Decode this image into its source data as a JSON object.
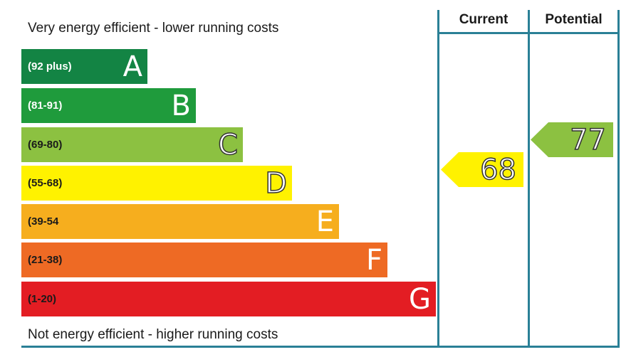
{
  "top_caption": "Very energy efficient - lower running costs",
  "bottom_caption": "Not energy efficient - higher running costs",
  "columns": {
    "current": "Current",
    "potential": "Potential"
  },
  "chart_data": {
    "type": "bar",
    "categories": [
      "A",
      "B",
      "C",
      "D",
      "E",
      "F",
      "G"
    ],
    "ranges": [
      "(92 plus)",
      "(81-91)",
      "(69-80)",
      "(55-68)",
      "(39-54",
      "(21-38)",
      "(1-20)"
    ],
    "colors": [
      "#138444",
      "#1f9b3c",
      "#8cc141",
      "#fff200",
      "#f6ae1e",
      "#ee6a24",
      "#e31d23"
    ],
    "current": {
      "value": "68",
      "band": "D",
      "color": "#fff200"
    },
    "potential": {
      "value": "77",
      "band": "C",
      "color": "#8cc141"
    }
  }
}
